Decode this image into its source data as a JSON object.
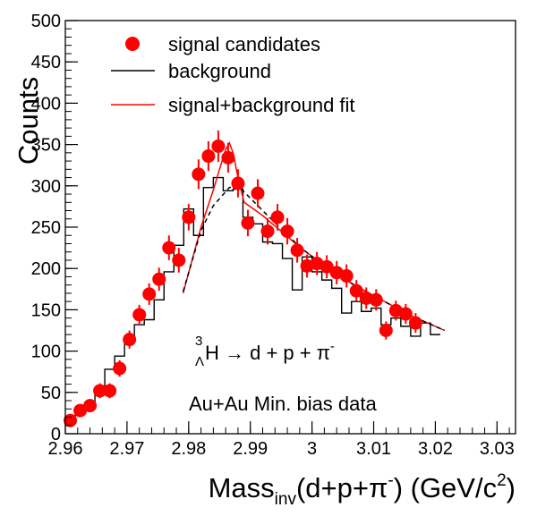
{
  "chart_data": {
    "type": "scatter",
    "ylabel": "Counts",
    "xlabel": {
      "main": "Mass",
      "sub": "inv",
      "rest_a": "(d+p+π",
      "sup": "-",
      "rest_b": ") (GeV/c",
      "sup2": "2",
      "rest_c": ")"
    },
    "xlim": [
      2.96,
      3.033
    ],
    "ylim": [
      0,
      500
    ],
    "x_ticks": [
      2.96,
      2.97,
      2.98,
      2.99,
      3.0,
      3.01,
      3.02,
      3.03
    ],
    "x_tick_labels": [
      "2.96",
      "2.97",
      "2.98",
      "2.99",
      "3",
      "3.01",
      "3.02",
      "3.03"
    ],
    "y_ticks": [
      0,
      50,
      100,
      150,
      200,
      250,
      300,
      350,
      400,
      450,
      500
    ],
    "y_tick_labels": [
      "0",
      "50",
      "100",
      "150",
      "200",
      "250",
      "300",
      "350",
      "400",
      "450",
      "500"
    ],
    "grid": false,
    "legend": {
      "position": "top-left",
      "entries": [
        {
          "label": "signal candidates",
          "style": "marker",
          "color": "#ff0000"
        },
        {
          "label": "background",
          "style": "line",
          "color": "#000000"
        },
        {
          "label": "signal+background fit",
          "style": "line",
          "color": "#ff0000"
        }
      ]
    },
    "annotations": {
      "reaction": {
        "sup": "3",
        "sub": "Λ",
        "text_a": "H → d + p + π",
        "text_sup": "-"
      },
      "dataset": "Au+Au Min. bias data"
    },
    "series": [
      {
        "name": "signal candidates",
        "color": "#ff0000",
        "points": [
          [
            2.9608,
            16,
            7
          ],
          [
            2.9624,
            28,
            8
          ],
          [
            2.964,
            34,
            8
          ],
          [
            2.9656,
            52,
            9
          ],
          [
            2.9672,
            52,
            9
          ],
          [
            2.9688,
            79,
            10
          ],
          [
            2.9704,
            114,
            11
          ],
          [
            2.972,
            144,
            12
          ],
          [
            2.9736,
            169,
            13
          ],
          [
            2.9752,
            187,
            14
          ],
          [
            2.9768,
            225,
            15
          ],
          [
            2.9784,
            210,
            15
          ],
          [
            2.98,
            262,
            16
          ],
          [
            2.9816,
            314,
            18
          ],
          [
            2.9832,
            336,
            18
          ],
          [
            2.9848,
            348,
            19
          ],
          [
            2.9864,
            334,
            18
          ],
          [
            2.988,
            303,
            17
          ],
          [
            2.9896,
            255,
            16
          ],
          [
            2.9912,
            291,
            17
          ],
          [
            2.9928,
            245,
            16
          ],
          [
            2.9944,
            262,
            16
          ],
          [
            2.996,
            245,
            16
          ],
          [
            2.9976,
            222,
            15
          ],
          [
            2.9992,
            203,
            14
          ],
          [
            3.0008,
            206,
            14
          ],
          [
            3.0024,
            202,
            14
          ],
          [
            3.004,
            195,
            14
          ],
          [
            3.0056,
            191,
            14
          ],
          [
            3.0072,
            173,
            13
          ],
          [
            3.0088,
            164,
            13
          ],
          [
            3.0104,
            162,
            13
          ],
          [
            3.012,
            125,
            11
          ],
          [
            3.0136,
            149,
            12
          ],
          [
            3.0152,
            145,
            12
          ],
          [
            3.0168,
            134,
            12
          ]
        ]
      },
      {
        "name": "background",
        "type": "step",
        "color": "#000000",
        "bin_width": 0.0016,
        "x_start": 2.96,
        "values": [
          18,
          30,
          38,
          52,
          78,
          94,
          114,
          132,
          138,
          162,
          196,
          228,
          272,
          240,
          298,
          310,
          294,
          296,
          262,
          254,
          232,
          230,
          212,
          174,
          214,
          196,
          186,
          176,
          146,
          160,
          148,
          152,
          132,
          140,
          130,
          118,
          134,
          120
        ]
      },
      {
        "name": "signal+background fit",
        "type": "curve",
        "color": "#ff0000",
        "points": [
          [
            2.9791,
            170
          ],
          [
            2.982,
            250
          ],
          [
            2.984,
            295
          ],
          [
            2.985,
            320
          ],
          [
            2.986,
            344
          ],
          [
            2.9866,
            352
          ],
          [
            2.9872,
            340
          ],
          [
            2.988,
            310
          ],
          [
            2.989,
            280
          ],
          [
            2.992,
            264
          ],
          [
            2.998,
            226
          ],
          [
            3.004,
            192
          ],
          [
            3.01,
            167
          ],
          [
            3.016,
            143
          ],
          [
            3.0215,
            125
          ]
        ]
      },
      {
        "name": "background fit",
        "type": "curve",
        "dashed": true,
        "color": "#000000",
        "points": [
          [
            2.9791,
            172
          ],
          [
            2.982,
            246
          ],
          [
            2.984,
            276
          ],
          [
            2.9866,
            298
          ],
          [
            2.988,
            300
          ],
          [
            2.992,
            270
          ],
          [
            2.998,
            226
          ],
          [
            3.004,
            192
          ],
          [
            3.01,
            167
          ],
          [
            3.016,
            143
          ],
          [
            3.0215,
            125
          ]
        ]
      }
    ]
  }
}
